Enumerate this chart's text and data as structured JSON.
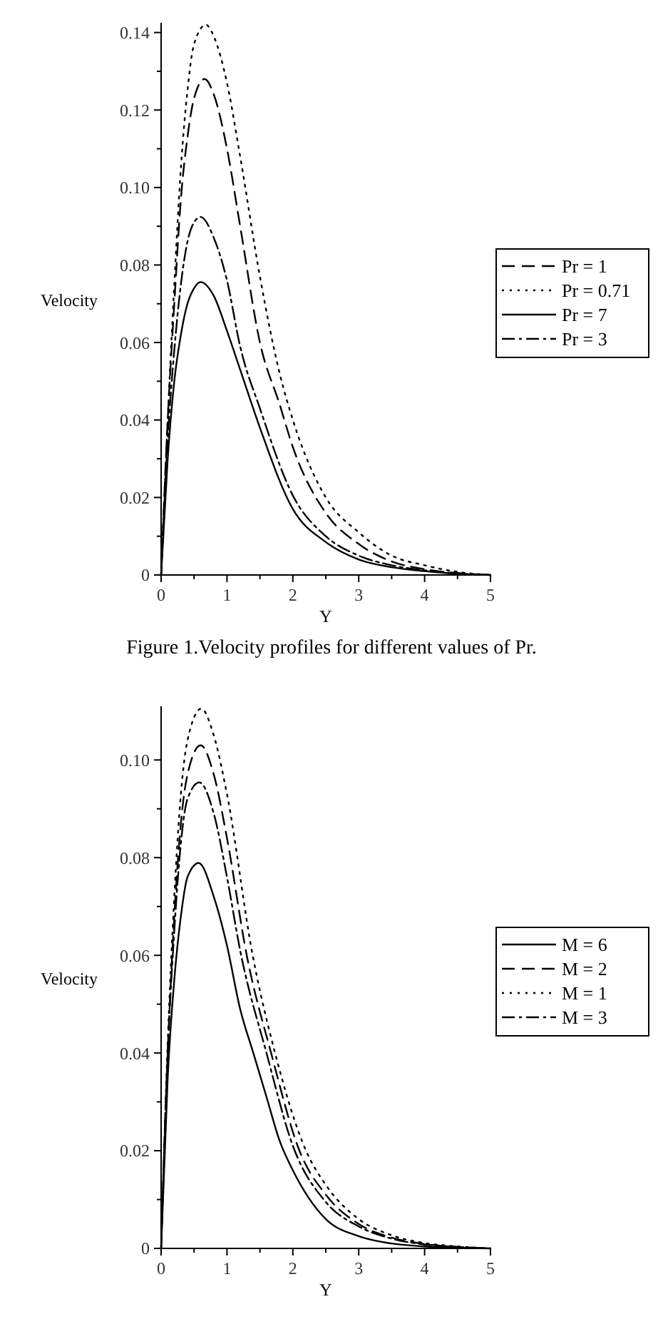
{
  "chart_data": [
    {
      "type": "line",
      "xlabel": "Y",
      "ylabel": "Velocity",
      "annotations": [
        "Figure 1.Velocity profiles for different values of Pr."
      ],
      "xlim": [
        0,
        5
      ],
      "ylim": [
        0,
        0.1425
      ],
      "xticks": [
        0,
        {
          "value": 0.5,
          "label": null
        },
        1,
        {
          "value": 1.5,
          "label": null
        },
        2,
        {
          "value": 2.5,
          "label": null
        },
        3,
        {
          "value": 3.5,
          "label": null
        },
        4,
        {
          "value": 4.5,
          "label": null
        },
        5
      ],
      "yticks": [
        0,
        {
          "value": 0.01,
          "label": null
        },
        0.02,
        {
          "value": 0.03,
          "label": null
        },
        0.04,
        {
          "value": 0.05,
          "label": null
        },
        0.06,
        {
          "value": 0.07,
          "label": null
        },
        0.08,
        {
          "value": 0.09,
          "label": null
        },
        {
          "value": 0.1,
          "label": "0.10"
        },
        {
          "value": 0.11,
          "label": null
        },
        0.12,
        {
          "value": 0.13,
          "label": null
        },
        0.14
      ],
      "legend": "right",
      "grid": false,
      "series": [
        {
          "name": "Pr = 1",
          "color": "#000000",
          "line_style": "dashed",
          "x": [
            0,
            0.1,
            0.2,
            0.3,
            0.4,
            0.5,
            0.66,
            0.8,
            1,
            1.2,
            1.5,
            1.8,
            2,
            2.5,
            3,
            3.5,
            4,
            4.5,
            5
          ],
          "values": [
            0,
            0.04,
            0.07,
            0.097,
            0.113,
            0.123,
            0.128,
            0.124,
            0.11,
            0.09,
            0.06,
            0.044,
            0.033,
            0.016,
            0.008,
            0.0035,
            0.0015,
            0.0005,
            0
          ]
        },
        {
          "name": "Pr = 0.71",
          "color": "#000000",
          "line_style": "dotted",
          "x": [
            0,
            0.1,
            0.2,
            0.3,
            0.4,
            0.5,
            0.68,
            0.8,
            1,
            1.2,
            1.5,
            1.8,
            2,
            2.5,
            3,
            3.5,
            4,
            4.5,
            5
          ],
          "values": [
            0,
            0.04,
            0.075,
            0.105,
            0.125,
            0.137,
            0.142,
            0.139,
            0.127,
            0.108,
            0.077,
            0.052,
            0.04,
            0.02,
            0.011,
            0.005,
            0.0025,
            0.0008,
            0
          ]
        },
        {
          "name": "Pr = 7",
          "color": "#000000",
          "line_style": "solid",
          "x": [
            0,
            0.1,
            0.2,
            0.3,
            0.4,
            0.5,
            0.6,
            0.8,
            1,
            1.2,
            1.5,
            2,
            2.5,
            3,
            3.5,
            4,
            4.5,
            5
          ],
          "values": [
            0,
            0.03,
            0.05,
            0.062,
            0.07,
            0.074,
            0.0756,
            0.072,
            0.063,
            0.053,
            0.038,
            0.017,
            0.0085,
            0.004,
            0.002,
            0.001,
            0.0003,
            0
          ]
        },
        {
          "name": "Pr = 3",
          "color": "#000000",
          "line_style": "dashdot",
          "x": [
            0,
            0.1,
            0.2,
            0.3,
            0.4,
            0.5,
            0.6,
            0.8,
            1,
            1.2,
            1.5,
            2,
            2.5,
            3,
            3.5,
            4,
            4.5,
            5
          ],
          "values": [
            0,
            0.035,
            0.058,
            0.075,
            0.086,
            0.091,
            0.0924,
            0.087,
            0.076,
            0.059,
            0.043,
            0.0205,
            0.01,
            0.005,
            0.0025,
            0.0012,
            0.0004,
            0
          ]
        }
      ]
    },
    {
      "type": "line",
      "xlabel": "Y",
      "ylabel": "Velocity",
      "xlim": [
        0,
        5
      ],
      "ylim": [
        0,
        0.111
      ],
      "xticks": [
        0,
        {
          "value": 0.5,
          "label": null
        },
        1,
        {
          "value": 1.5,
          "label": null
        },
        2,
        {
          "value": 2.5,
          "label": null
        },
        3,
        {
          "value": 3.5,
          "label": null
        },
        4,
        {
          "value": 4.5,
          "label": null
        },
        5
      ],
      "yticks": [
        0,
        {
          "value": 0.01,
          "label": null
        },
        0.02,
        {
          "value": 0.03,
          "label": null
        },
        0.04,
        {
          "value": 0.05,
          "label": null
        },
        0.06,
        {
          "value": 0.07,
          "label": null
        },
        0.08,
        {
          "value": 0.09,
          "label": null
        },
        {
          "value": 0.1,
          "label": "0.10"
        }
      ],
      "legend": "right",
      "grid": false,
      "series": [
        {
          "name": "M = 6",
          "color": "#000000",
          "line_style": "solid",
          "x": [
            0,
            0.1,
            0.2,
            0.3,
            0.4,
            0.57,
            0.8,
            1,
            1.2,
            1.4,
            1.6,
            1.8,
            2,
            2.5,
            3,
            3.5,
            4,
            5
          ],
          "values": [
            0,
            0.035,
            0.055,
            0.068,
            0.076,
            0.0789,
            0.072,
            0.062,
            0.049,
            0.04,
            0.031,
            0.022,
            0.016,
            0.006,
            0.0025,
            0.001,
            0.0004,
            0
          ]
        },
        {
          "name": "M = 2",
          "color": "#000000",
          "line_style": "dashed",
          "x": [
            0,
            0.1,
            0.2,
            0.3,
            0.4,
            0.6,
            0.8,
            1,
            1.3,
            1.67,
            2.1,
            2.5,
            3,
            3.5,
            4,
            4.5,
            5
          ],
          "values": [
            0,
            0.04,
            0.068,
            0.087,
            0.097,
            0.103,
            0.097,
            0.084,
            0.06,
            0.04,
            0.02,
            0.011,
            0.005,
            0.0022,
            0.0009,
            0.0003,
            0
          ]
        },
        {
          "name": "M = 1",
          "color": "#000000",
          "line_style": "dotted",
          "x": [
            0,
            0.1,
            0.2,
            0.3,
            0.4,
            0.61,
            0.8,
            1,
            1.39,
            1.73,
            2.2,
            2.5,
            3,
            3.5,
            4,
            4.5,
            5
          ],
          "values": [
            0,
            0.042,
            0.072,
            0.093,
            0.104,
            0.1105,
            0.105,
            0.093,
            0.06,
            0.04,
            0.02,
            0.013,
            0.006,
            0.0027,
            0.0011,
            0.0004,
            0
          ]
        },
        {
          "name": "M = 3",
          "color": "#000000",
          "line_style": "dashdot",
          "x": [
            0,
            0.1,
            0.2,
            0.3,
            0.4,
            0.58,
            0.8,
            1,
            1.2,
            1.6,
            2,
            2.5,
            3,
            3.5,
            4,
            4.5,
            5
          ],
          "values": [
            0,
            0.04,
            0.065,
            0.083,
            0.092,
            0.0954,
            0.089,
            0.076,
            0.061,
            0.04,
            0.021,
            0.0095,
            0.0045,
            0.002,
            0.0008,
            0.0003,
            0
          ]
        }
      ]
    }
  ]
}
